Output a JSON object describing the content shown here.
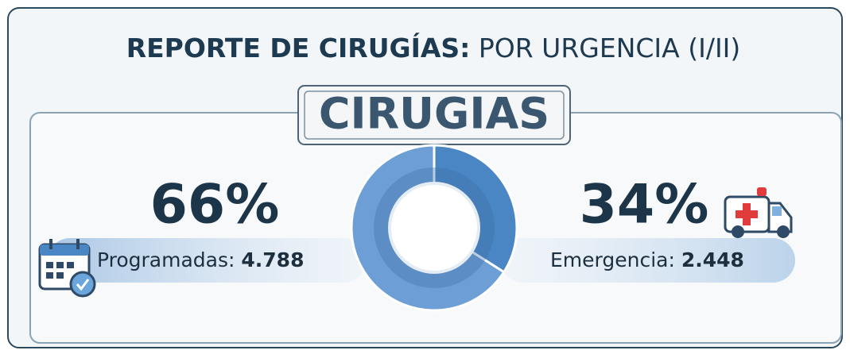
{
  "chart_data": {
    "type": "pie",
    "title": "REPORTE DE CIRUGÍAS:",
    "subtitle": "POR URGENCIA (I/II)",
    "heading": "CIRUGIAS",
    "categories": [
      "Programadas:",
      "Emergencia:"
    ],
    "values": [
      66,
      34
    ],
    "value_labels": [
      "66%",
      "34%"
    ],
    "counts": [
      4788,
      2448
    ],
    "count_labels": [
      "4.788",
      "2.448"
    ],
    "colors": [
      "#6d9fd6",
      "#4a85c4"
    ],
    "donut": true
  }
}
